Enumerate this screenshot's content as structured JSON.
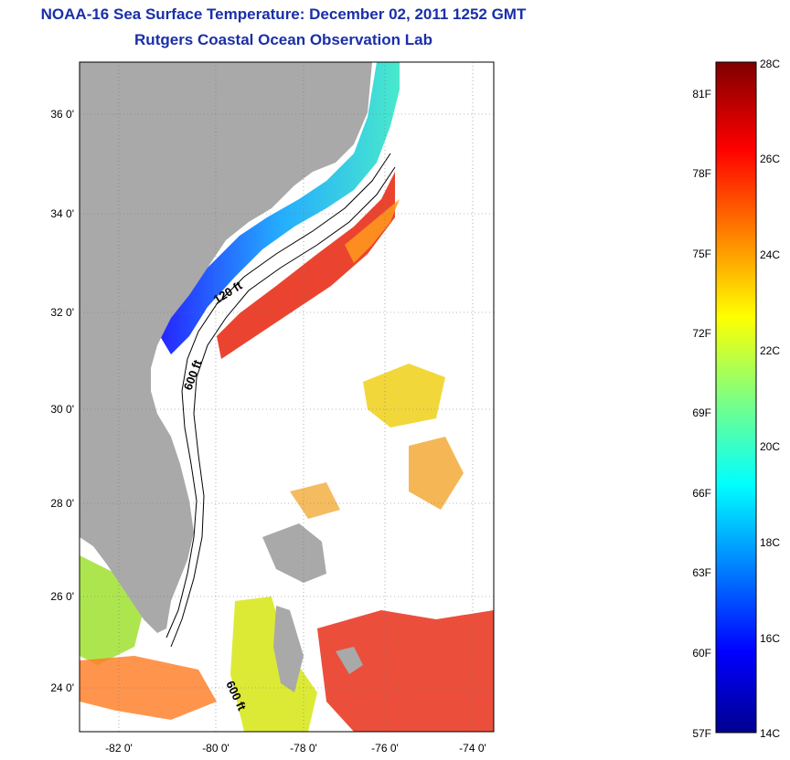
{
  "title": {
    "line1": "NOAA-16 Sea Surface Temperature:  December 02, 2011 1252 GMT",
    "line2": "Rutgers Coastal Ocean Observation Lab"
  },
  "map": {
    "lat_labels": [
      "36 0'",
      "34 0'",
      "32 0'",
      "30 0'",
      "28 0'",
      "26 0'",
      "24 0'"
    ],
    "lon_labels": [
      "-82 0'",
      "-80 0'",
      "-78 0'",
      "-76 0'",
      "-74 0'"
    ],
    "contour_labels": {
      "c120": "120 ft",
      "c600a": "600 ft",
      "c600b": "600 ft"
    },
    "colors": {
      "land": "#a9a9a9",
      "cloud": "#ffffff",
      "coast_cold": "#1e3cff",
      "gulfstream": "#e8301a"
    }
  },
  "colorbar": {
    "top_label": "28C",
    "bottom_label": "14C",
    "celsius_labels": [
      "26C",
      "24C",
      "22C",
      "20C",
      "18C",
      "16C"
    ],
    "fahrenheit_labels": [
      "81F",
      "78F",
      "75F",
      "72F",
      "69F",
      "66F",
      "63F",
      "60F",
      "57F"
    ]
  }
}
